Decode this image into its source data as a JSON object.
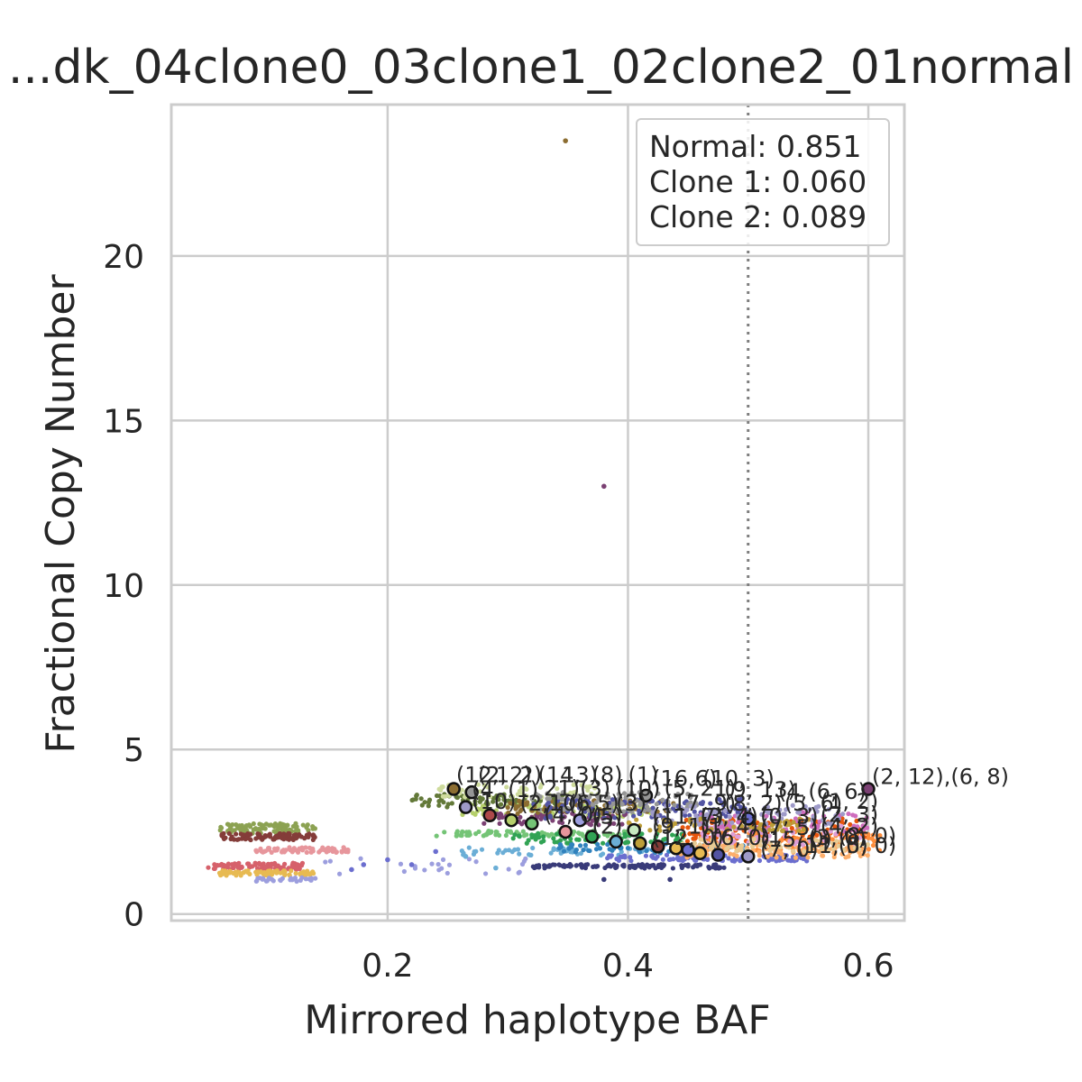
{
  "chart_data": {
    "type": "scatter",
    "title": "...dk_04clone0_03clone1_02clone2_01normal",
    "xlabel": "Mirrored haplotype BAF",
    "ylabel": "Fractional Copy Number",
    "xlim": [
      0.02,
      0.63
    ],
    "ylim": [
      -0.2,
      24.6
    ],
    "x_ticks": [
      {
        "value": 0.2,
        "label": "0.2"
      },
      {
        "value": 0.4,
        "label": "0.4"
      },
      {
        "value": 0.6,
        "label": "0.6"
      }
    ],
    "y_ticks": [
      {
        "value": 0,
        "label": "0"
      },
      {
        "value": 5,
        "label": "5"
      },
      {
        "value": 10,
        "label": "10"
      },
      {
        "value": 15,
        "label": "15"
      },
      {
        "value": 20,
        "label": "20"
      }
    ],
    "grid": true,
    "reference_line_x": 0.5,
    "legend": {
      "placement": "top-right",
      "entries": [
        "Normal: 0.851",
        "Clone 1: 0.060",
        "Clone 2: 0.089"
      ]
    },
    "bin_clusters": [
      {
        "color": "#8ca252",
        "x": [
          0.06,
          0.14
        ],
        "y": 2.6,
        "spread": 0.15,
        "n": 90
      },
      {
        "color": "#843c39",
        "x": [
          0.06,
          0.14
        ],
        "y": 2.35,
        "spread": 0.1,
        "n": 90
      },
      {
        "color": "#e7969c",
        "x": [
          0.09,
          0.17
        ],
        "y": 1.95,
        "spread": 0.08,
        "n": 70
      },
      {
        "color": "#d6616b",
        "x": [
          0.05,
          0.13
        ],
        "y": 1.45,
        "spread": 0.1,
        "n": 90
      },
      {
        "color": "#e7ba52",
        "x": [
          0.06,
          0.14
        ],
        "y": 1.25,
        "spread": 0.08,
        "n": 80
      },
      {
        "color": "#9c9ede",
        "x": [
          0.09,
          0.14
        ],
        "y": 1.05,
        "spread": 0.06,
        "n": 30
      },
      {
        "color": "#9c9ede",
        "x": [
          0.14,
          0.32
        ],
        "y": 1.45,
        "spread": 0.25,
        "n": 25
      },
      {
        "color": "#637939",
        "x": [
          0.22,
          0.35
        ],
        "y": 3.45,
        "spread": 0.2,
        "n": 90
      },
      {
        "color": "#cedb9c",
        "x": [
          0.24,
          0.38
        ],
        "y": 3.75,
        "spread": 0.2,
        "n": 60
      },
      {
        "color": "#b5cf6b",
        "x": [
          0.26,
          0.42
        ],
        "y": 3.15,
        "spread": 0.2,
        "n": 90
      },
      {
        "color": "#74c476",
        "x": [
          0.24,
          0.4
        ],
        "y": 2.45,
        "spread": 0.08,
        "n": 80
      },
      {
        "color": "#31a354",
        "x": [
          0.3,
          0.45
        ],
        "y": 2.3,
        "spread": 0.15,
        "n": 70
      },
      {
        "color": "#6baed6",
        "x": [
          0.26,
          0.42
        ],
        "y": 1.9,
        "spread": 0.12,
        "n": 50
      },
      {
        "color": "#3182bd",
        "x": [
          0.34,
          0.5
        ],
        "y": 2.0,
        "spread": 0.15,
        "n": 60
      },
      {
        "color": "#7b4173",
        "x": [
          0.28,
          0.4
        ],
        "y": 2.9,
        "spread": 0.2,
        "n": 60
      },
      {
        "color": "#8c6d31",
        "x": [
          0.3,
          0.44
        ],
        "y": 3.25,
        "spread": 0.2,
        "n": 70
      },
      {
        "color": "#5254a3",
        "x": [
          0.32,
          0.5
        ],
        "y": 3.2,
        "spread": 0.3,
        "n": 120
      },
      {
        "color": "#6b6ecf",
        "x": [
          0.38,
          0.55
        ],
        "y": 1.7,
        "spread": 0.1,
        "n": 110
      },
      {
        "color": "#393b79",
        "x": [
          0.32,
          0.48
        ],
        "y": 1.45,
        "spread": 0.06,
        "n": 110
      },
      {
        "color": "#969696",
        "x": [
          0.32,
          0.46
        ],
        "y": 3.4,
        "spread": 0.3,
        "n": 80
      },
      {
        "color": "#e6550d",
        "x": [
          0.44,
          0.6
        ],
        "y": 2.55,
        "spread": 0.35,
        "n": 110
      },
      {
        "color": "#fd8d3c",
        "x": [
          0.46,
          0.61
        ],
        "y": 2.2,
        "spread": 0.3,
        "n": 110
      },
      {
        "color": "#fdae6b",
        "x": [
          0.44,
          0.6
        ],
        "y": 1.9,
        "spread": 0.2,
        "n": 100
      },
      {
        "color": "#de9ed6",
        "x": [
          0.46,
          0.6
        ],
        "y": 2.4,
        "spread": 0.3,
        "n": 70
      },
      {
        "color": "#ce6dbd",
        "x": [
          0.46,
          0.6
        ],
        "y": 2.8,
        "spread": 0.3,
        "n": 60
      },
      {
        "color": "#9e9ac8",
        "x": [
          0.42,
          0.58
        ],
        "y": 3.0,
        "spread": 0.3,
        "n": 90
      },
      {
        "color": "#bd9e39",
        "x": [
          0.4,
          0.55
        ],
        "y": 2.7,
        "spread": 0.2,
        "n": 60
      },
      {
        "color": "#e7cb94",
        "x": [
          0.44,
          0.6
        ],
        "y": 2.1,
        "spread": 0.2,
        "n": 70
      }
    ],
    "outlier_points": [
      {
        "x": 0.348,
        "y": 23.5,
        "color": "#8c6d31"
      },
      {
        "x": 0.38,
        "y": 13.0,
        "color": "#7b4173"
      },
      {
        "x": 0.17,
        "y": 1.35,
        "color": "#6b6ecf"
      },
      {
        "x": 0.18,
        "y": 1.5,
        "color": "#6b6ecf"
      },
      {
        "x": 0.2,
        "y": 1.65,
        "color": "#6b6ecf"
      },
      {
        "x": 0.22,
        "y": 1.5,
        "color": "#6b6ecf"
      },
      {
        "x": 0.24,
        "y": 1.9,
        "color": "#6b6ecf"
      },
      {
        "x": 0.265,
        "y": 1.75,
        "color": "#6baed6"
      },
      {
        "x": 0.29,
        "y": 1.4,
        "color": "#6baed6"
      },
      {
        "x": 0.38,
        "y": 1.05,
        "color": "#393b79"
      },
      {
        "x": 0.435,
        "y": 1.05,
        "color": "#393b79"
      }
    ],
    "centroids": [
      {
        "x": 0.255,
        "y": 3.8,
        "color": "#8c6d31"
      },
      {
        "x": 0.27,
        "y": 3.7,
        "color": "#969696"
      },
      {
        "x": 0.265,
        "y": 3.25,
        "color": "#9e9ac8"
      },
      {
        "x": 0.285,
        "y": 3.0,
        "color": "#ad494a"
      },
      {
        "x": 0.303,
        "y": 2.85,
        "color": "#b5cf6b"
      },
      {
        "x": 0.32,
        "y": 2.75,
        "color": "#74c476"
      },
      {
        "x": 0.348,
        "y": 2.5,
        "color": "#e7969c"
      },
      {
        "x": 0.36,
        "y": 2.85,
        "color": "#9c9ede"
      },
      {
        "x": 0.37,
        "y": 2.35,
        "color": "#31a354"
      },
      {
        "x": 0.39,
        "y": 2.2,
        "color": "#6baed6"
      },
      {
        "x": 0.405,
        "y": 2.55,
        "color": "#c7e9c0"
      },
      {
        "x": 0.41,
        "y": 2.15,
        "color": "#bd9e39"
      },
      {
        "x": 0.415,
        "y": 3.6,
        "color": "#969696"
      },
      {
        "x": 0.425,
        "y": 2.05,
        "color": "#843c39"
      },
      {
        "x": 0.44,
        "y": 2.0,
        "color": "#e7ba52"
      },
      {
        "x": 0.45,
        "y": 1.95,
        "color": "#6b6ecf"
      },
      {
        "x": 0.46,
        "y": 1.85,
        "color": "#e7ba52"
      },
      {
        "x": 0.475,
        "y": 1.8,
        "color": "#5254a3"
      },
      {
        "x": 0.5,
        "y": 1.75,
        "color": "#9e9ac8"
      },
      {
        "x": 0.5,
        "y": 2.9,
        "color": "#6b6ecf"
      },
      {
        "x": 0.6,
        "y": 3.8,
        "color": "#7b4173"
      }
    ],
    "labels": [
      {
        "x": 0.257,
        "y": 4.0,
        "text": "(12,"
      },
      {
        "x": 0.275,
        "y": 4.0,
        "text": "(2,"
      },
      {
        "x": 0.29,
        "y": 4.0,
        "text": "12)"
      },
      {
        "x": 0.31,
        "y": 4.0,
        "text": "2)"
      },
      {
        "x": 0.325,
        "y": 4.0,
        "text": "(14,"
      },
      {
        "x": 0.345,
        "y": 4.0,
        "text": "13)"
      },
      {
        "x": 0.37,
        "y": 4.0,
        "text": "(8)"
      },
      {
        "x": 0.4,
        "y": 4.0,
        "text": "(1)"
      },
      {
        "x": 0.42,
        "y": 3.9,
        "text": "(16,6)"
      },
      {
        "x": 0.462,
        "y": 3.9,
        "text": "(10, 3)"
      },
      {
        "x": 0.27,
        "y": 3.55,
        "text": "(4,"
      },
      {
        "x": 0.3,
        "y": 3.55,
        "text": "(1)"
      },
      {
        "x": 0.33,
        "y": 3.6,
        "text": "21)"
      },
      {
        "x": 0.36,
        "y": 3.6,
        "text": "(3)"
      },
      {
        "x": 0.39,
        "y": 3.6,
        "text": "(10)"
      },
      {
        "x": 0.43,
        "y": 3.6,
        "text": "(5, 21)"
      },
      {
        "x": 0.48,
        "y": 3.55,
        "text": "(9, 13)"
      },
      {
        "x": 0.525,
        "y": 3.5,
        "text": "(4,"
      },
      {
        "x": 0.55,
        "y": 3.5,
        "text": "(6, 6)"
      },
      {
        "x": 0.27,
        "y": 3.2,
        "text": "(10)"
      },
      {
        "x": 0.31,
        "y": 3.15,
        "text": "(2,10)"
      },
      {
        "x": 0.35,
        "y": 3.15,
        "text": "(6,5)"
      },
      {
        "x": 0.39,
        "y": 3.15,
        "text": "(3)"
      },
      {
        "x": 0.43,
        "y": 3.15,
        "text": "(17, 9)"
      },
      {
        "x": 0.48,
        "y": 3.15,
        "text": "(8, 2)"
      },
      {
        "x": 0.53,
        "y": 3.15,
        "text": "(5, 6)"
      },
      {
        "x": 0.56,
        "y": 3.2,
        "text": "(1, 2)"
      },
      {
        "x": 0.33,
        "y": 2.8,
        "text": "(4, 0)"
      },
      {
        "x": 0.37,
        "y": 2.75,
        "text": "(5)"
      },
      {
        "x": 0.42,
        "y": 2.75,
        "text": "(11, 7)"
      },
      {
        "x": 0.46,
        "y": 2.75,
        "text": "(3, 4)"
      },
      {
        "x": 0.51,
        "y": 2.75,
        "text": "(0, 3)"
      },
      {
        "x": 0.56,
        "y": 2.8,
        "text": "(2, 3)"
      },
      {
        "x": 0.37,
        "y": 2.45,
        "text": "(2)"
      },
      {
        "x": 0.42,
        "y": 2.45,
        "text": "(9, 1)"
      },
      {
        "x": 0.46,
        "y": 2.45,
        "text": "(1, 4)"
      },
      {
        "x": 0.51,
        "y": 2.4,
        "text": "(7, 5)"
      },
      {
        "x": 0.56,
        "y": 2.45,
        "text": "(4, 2)"
      },
      {
        "x": 0.42,
        "y": 2.1,
        "text": "(12, 0)"
      },
      {
        "x": 0.47,
        "y": 2.1,
        "text": "(6, 0)"
      },
      {
        "x": 0.51,
        "y": 2.05,
        "text": "(15, 0)"
      },
      {
        "x": 0.55,
        "y": 2.1,
        "text": "(3, 0)"
      },
      {
        "x": 0.575,
        "y": 2.15,
        "text": "(8, 0)"
      },
      {
        "x": 0.51,
        "y": 1.75,
        "text": "(7, 0)"
      },
      {
        "x": 0.54,
        "y": 1.85,
        "text": "(11, 0)"
      },
      {
        "x": 0.575,
        "y": 1.85,
        "text": "(5, 0)"
      },
      {
        "x": 0.603,
        "y": 3.95,
        "text": "(2, 12),(6, 8)"
      }
    ]
  }
}
